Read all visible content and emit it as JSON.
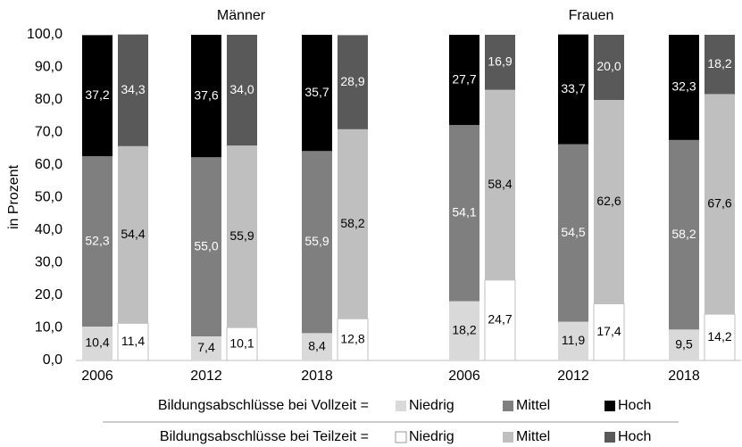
{
  "chart_data": {
    "type": "stacked_bar",
    "y_label": "in Prozent",
    "groups": [
      "Männer",
      "Frauen"
    ],
    "categories": [
      "2006",
      "2012",
      "2018",
      "2006",
      "2012",
      "2018"
    ],
    "ylim": [
      0,
      100
    ],
    "yticks": [
      {
        "value": 0,
        "label": "0,0"
      },
      {
        "value": 10,
        "label": "10,0"
      },
      {
        "value": 20,
        "label": "20,0"
      },
      {
        "value": 30,
        "label": "30,0"
      },
      {
        "value": 40,
        "label": "40,0"
      },
      {
        "value": 50,
        "label": "50,0"
      },
      {
        "value": 60,
        "label": "60,0"
      },
      {
        "value": 70,
        "label": "70,0"
      },
      {
        "value": 80,
        "label": "80,0"
      },
      {
        "value": 90,
        "label": "90,0"
      },
      {
        "value": 100,
        "label": "100,0"
      }
    ],
    "stacks": [
      {
        "label": "Bildungsabschlüsse bei Vollzeit =",
        "series": [
          {
            "name": "Niedrig",
            "color": "#d9d9d9",
            "values": [
              10.4,
              7.4,
              8.4,
              18.2,
              11.9,
              9.5
            ],
            "value_labels": [
              "10,4",
              "7,4",
              "8,4",
              "18,2",
              "11,9",
              "9,5"
            ]
          },
          {
            "name": "Mittel",
            "color": "#7f7f7f",
            "values": [
              52.3,
              55.0,
              55.9,
              54.1,
              54.5,
              58.2
            ],
            "value_labels": [
              "52,3",
              "55,0",
              "55,9",
              "54,1",
              "54,5",
              "58,2"
            ]
          },
          {
            "name": "Hoch",
            "color": "#000000",
            "values": [
              37.2,
              37.6,
              35.7,
              27.7,
              33.7,
              32.3
            ],
            "value_labels": [
              "37,2",
              "37,6",
              "35,7",
              "27,7",
              "33,7",
              "32,3"
            ]
          }
        ]
      },
      {
        "label": "Bildungsabschlüsse bei Teilzeit =",
        "series": [
          {
            "name": "Niedrig",
            "color": "#ffffff",
            "values": [
              11.4,
              10.1,
              12.8,
              24.7,
              17.4,
              14.2
            ],
            "value_labels": [
              "11,4",
              "10,1",
              "12,8",
              "24,7",
              "17,4",
              "14,2"
            ]
          },
          {
            "name": "Mittel",
            "color": "#bfbfbf",
            "values": [
              54.4,
              55.9,
              58.2,
              58.4,
              62.6,
              67.6
            ],
            "value_labels": [
              "54,4",
              "55,9",
              "58,2",
              "58,4",
              "62,6",
              "67,6"
            ]
          },
          {
            "name": "Hoch",
            "color": "#595959",
            "values": [
              34.3,
              34.0,
              28.9,
              16.9,
              20.0,
              18.2
            ],
            "value_labels": [
              "34,3",
              "34,0",
              "28,9",
              "16,9",
              "20,0",
              "18,2"
            ]
          }
        ]
      }
    ]
  }
}
